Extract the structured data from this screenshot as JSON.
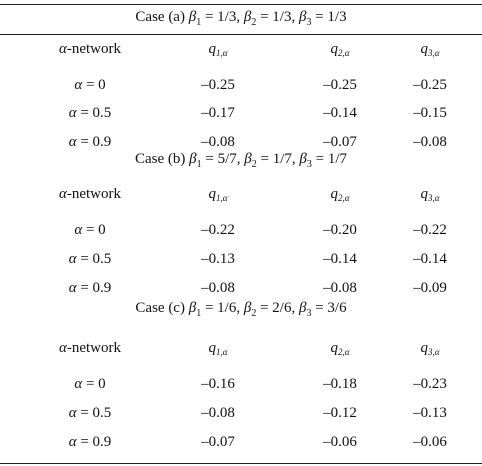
{
  "cases": [
    {
      "label": "Case (a)",
      "betas": [
        {
          "symbol": "β",
          "sub": "1",
          "value": "1/3"
        },
        {
          "symbol": "β",
          "sub": "2",
          "value": "1/3"
        },
        {
          "symbol": "β",
          "sub": "3",
          "value": "1/3"
        }
      ],
      "rows": [
        {
          "alpha_symbol": "α",
          "alpha_value": "0",
          "values": [
            "–0.25",
            "–0.25",
            "–0.25"
          ]
        },
        {
          "alpha_symbol": "α",
          "alpha_value": "0.5",
          "values": [
            "–0.17",
            "–0.14",
            "–0.15"
          ]
        },
        {
          "alpha_symbol": "α",
          "alpha_value": "0.9",
          "values": [
            "–0.08",
            "–0.07",
            "–0.08"
          ]
        }
      ]
    },
    {
      "label": "Case (b)",
      "betas": [
        {
          "symbol": "β",
          "sub": "1",
          "value": "5/7"
        },
        {
          "symbol": "β",
          "sub": "2",
          "value": "1/7"
        },
        {
          "symbol": "β",
          "sub": "3",
          "value": "1/7"
        }
      ],
      "rows": [
        {
          "alpha_symbol": "α",
          "alpha_value": "0",
          "values": [
            "–0.22",
            "–0.20",
            "–0.22"
          ]
        },
        {
          "alpha_symbol": "α",
          "alpha_value": "0.5",
          "values": [
            "–0.13",
            "–0.14",
            "–0.14"
          ]
        },
        {
          "alpha_symbol": "α",
          "alpha_value": "0.9",
          "values": [
            "–0.08",
            "–0.08",
            "–0.09"
          ]
        }
      ]
    },
    {
      "label": "Case (c)",
      "betas": [
        {
          "symbol": "β",
          "sub": "1",
          "value": "1/6"
        },
        {
          "symbol": "β",
          "sub": "2",
          "value": "2/6"
        },
        {
          "symbol": "β",
          "sub": "3",
          "value": "3/6"
        }
      ],
      "rows": [
        {
          "alpha_symbol": "α",
          "alpha_value": "0",
          "values": [
            "–0.16",
            "–0.18",
            "–0.23"
          ]
        },
        {
          "alpha_symbol": "α",
          "alpha_value": "0.5",
          "values": [
            "–0.08",
            "–0.12",
            "–0.13"
          ]
        },
        {
          "alpha_symbol": "α",
          "alpha_value": "0.9",
          "values": [
            "–0.07",
            "–0.06",
            "–0.06"
          ]
        }
      ]
    }
  ],
  "header": {
    "row_label_symbol": "α",
    "row_label_text": "-network",
    "columns": [
      {
        "symbol": "q",
        "sub": "1,α"
      },
      {
        "symbol": "q",
        "sub": "2,α"
      },
      {
        "symbol": "q",
        "sub": "3,α"
      }
    ]
  }
}
